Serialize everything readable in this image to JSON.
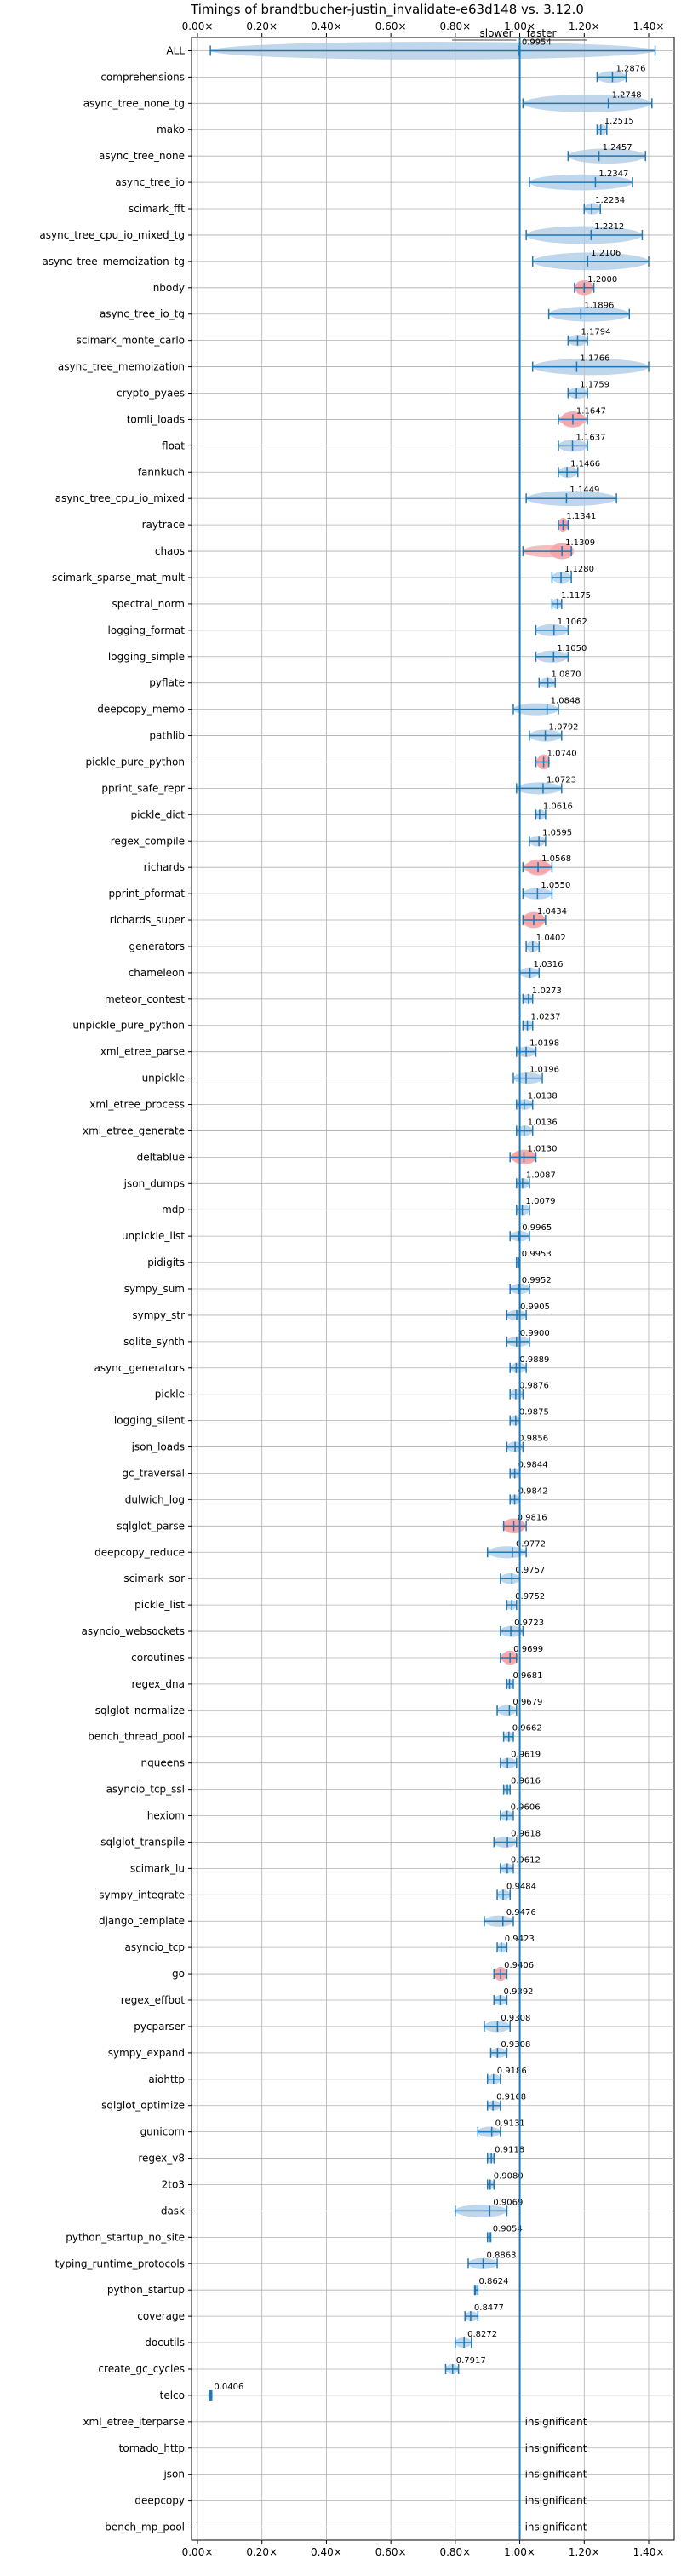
{
  "chart_data": {
    "type": "violin",
    "title": "Timings of brandtbucher-justin_invalidate-e63d148 vs. 3.12.0",
    "xlim": [
      0.0,
      1.4
    ],
    "reference_line": 1.0,
    "direction_labels": {
      "slower": "slower",
      "faster": "faster"
    },
    "x_ticks": [
      {
        "value": 0.0,
        "label": "0.00×"
      },
      {
        "value": 0.2,
        "label": "0.20×"
      },
      {
        "value": 0.4,
        "label": "0.40×"
      },
      {
        "value": 0.6,
        "label": "0.60×"
      },
      {
        "value": 0.8,
        "label": "0.80×"
      },
      {
        "value": 1.0,
        "label": "1.00×"
      },
      {
        "value": 1.2,
        "label": "1.20×"
      },
      {
        "value": 1.4,
        "label": "1.40×"
      }
    ],
    "grid": true,
    "colors": {
      "violin": "#aac8e4",
      "line": "#1f77b4",
      "highlight": "#f4a5a8",
      "grid": "#b0b0b0",
      "ref": "#1f77b4"
    },
    "insignificant_label": "insignificant",
    "benchmarks": [
      {
        "name": "ALL",
        "value": 0.9954,
        "label": "0.9954",
        "min": 0.04,
        "max": 1.42,
        "spread": 0.12,
        "highlight": false
      },
      {
        "name": "comprehensions",
        "value": 1.2876,
        "label": "1.2876",
        "min": 1.24,
        "max": 1.33,
        "spread": 0.04,
        "highlight": false
      },
      {
        "name": "async_tree_none_tg",
        "value": 1.2748,
        "label": "1.2748",
        "min": 1.01,
        "max": 1.41,
        "spread": 0.12,
        "highlight": false
      },
      {
        "name": "mako",
        "value": 1.2515,
        "label": "1.2515",
        "min": 1.24,
        "max": 1.27,
        "spread": 0.02,
        "highlight": false
      },
      {
        "name": "async_tree_none",
        "value": 1.2457,
        "label": "1.2457",
        "min": 1.15,
        "max": 1.39,
        "spread": 0.08,
        "highlight": false
      },
      {
        "name": "async_tree_io",
        "value": 1.2347,
        "label": "1.2347",
        "min": 1.03,
        "max": 1.35,
        "spread": 0.09,
        "highlight": false
      },
      {
        "name": "scimark_fft",
        "value": 1.2234,
        "label": "1.2234",
        "min": 1.2,
        "max": 1.25,
        "spread": 0.03,
        "highlight": false
      },
      {
        "name": "async_tree_cpu_io_mixed_tg",
        "value": 1.2212,
        "label": "1.2212",
        "min": 1.02,
        "max": 1.38,
        "spread": 0.12,
        "highlight": false
      },
      {
        "name": "async_tree_memoization_tg",
        "value": 1.2106,
        "label": "1.2106",
        "min": 1.04,
        "max": 1.4,
        "spread": 0.12,
        "highlight": false
      },
      {
        "name": "nbody",
        "value": 1.2,
        "label": "1.2000",
        "min": 1.17,
        "max": 1.23,
        "spread": 0.03,
        "highlight": true
      },
      {
        "name": "async_tree_io_tg",
        "value": 1.1896,
        "label": "1.1896",
        "min": 1.09,
        "max": 1.34,
        "spread": 0.08,
        "highlight": false
      },
      {
        "name": "scimark_monte_carlo",
        "value": 1.1794,
        "label": "1.1794",
        "min": 1.15,
        "max": 1.21,
        "spread": 0.03,
        "highlight": false
      },
      {
        "name": "async_tree_memoization",
        "value": 1.1766,
        "label": "1.1766",
        "min": 1.04,
        "max": 1.4,
        "spread": 0.1,
        "highlight": false
      },
      {
        "name": "crypto_pyaes",
        "value": 1.1759,
        "label": "1.1759",
        "min": 1.15,
        "max": 1.21,
        "spread": 0.03,
        "highlight": false
      },
      {
        "name": "tomli_loads",
        "value": 1.1647,
        "label": "1.1647",
        "min": 1.12,
        "max": 1.21,
        "spread": 0.04,
        "highlight": true
      },
      {
        "name": "float",
        "value": 1.1637,
        "label": "1.1637",
        "min": 1.12,
        "max": 1.21,
        "spread": 0.04,
        "highlight": false
      },
      {
        "name": "fannkuch",
        "value": 1.1466,
        "label": "1.1466",
        "min": 1.12,
        "max": 1.18,
        "spread": 0.03,
        "highlight": false
      },
      {
        "name": "async_tree_cpu_io_mixed",
        "value": 1.1449,
        "label": "1.1449",
        "min": 1.02,
        "max": 1.3,
        "spread": 0.08,
        "highlight": false
      },
      {
        "name": "raytrace",
        "value": 1.1341,
        "label": "1.1341",
        "min": 1.12,
        "max": 1.15,
        "spread": 0.02,
        "highlight": true
      },
      {
        "name": "chaos",
        "value": 1.1309,
        "label": "1.1309",
        "min": 1.01,
        "max": 1.16,
        "spread": 0.04,
        "highlight": true
      },
      {
        "name": "scimark_sparse_mat_mult",
        "value": 1.128,
        "label": "1.1280",
        "min": 1.1,
        "max": 1.16,
        "spread": 0.03,
        "highlight": false
      },
      {
        "name": "spectral_norm",
        "value": 1.1175,
        "label": "1.1175",
        "min": 1.1,
        "max": 1.13,
        "spread": 0.02,
        "highlight": false
      },
      {
        "name": "logging_format",
        "value": 1.1062,
        "label": "1.1062",
        "min": 1.05,
        "max": 1.15,
        "spread": 0.04,
        "highlight": false
      },
      {
        "name": "logging_simple",
        "value": 1.105,
        "label": "1.1050",
        "min": 1.05,
        "max": 1.15,
        "spread": 0.04,
        "highlight": false
      },
      {
        "name": "pyflate",
        "value": 1.087,
        "label": "1.0870",
        "min": 1.06,
        "max": 1.11,
        "spread": 0.02,
        "highlight": false
      },
      {
        "name": "deepcopy_memo",
        "value": 1.0848,
        "label": "1.0848",
        "min": 0.98,
        "max": 1.12,
        "spread": 0.04,
        "highlight": false
      },
      {
        "name": "pathlib",
        "value": 1.0792,
        "label": "1.0792",
        "min": 1.03,
        "max": 1.13,
        "spread": 0.04,
        "highlight": false
      },
      {
        "name": "pickle_pure_python",
        "value": 1.074,
        "label": "1.0740",
        "min": 1.05,
        "max": 1.09,
        "spread": 0.03,
        "highlight": true
      },
      {
        "name": "pprint_safe_repr",
        "value": 1.0723,
        "label": "1.0723",
        "min": 0.99,
        "max": 1.13,
        "spread": 0.04,
        "highlight": false
      },
      {
        "name": "pickle_dict",
        "value": 1.0616,
        "label": "1.0616",
        "min": 1.05,
        "max": 1.08,
        "spread": 0.015,
        "highlight": false
      },
      {
        "name": "regex_compile",
        "value": 1.0595,
        "label": "1.0595",
        "min": 1.03,
        "max": 1.08,
        "spread": 0.02,
        "highlight": false
      },
      {
        "name": "richards",
        "value": 1.0568,
        "label": "1.0568",
        "min": 1.01,
        "max": 1.1,
        "spread": 0.04,
        "highlight": true
      },
      {
        "name": "pprint_pformat",
        "value": 1.055,
        "label": "1.0550",
        "min": 1.01,
        "max": 1.1,
        "spread": 0.03,
        "highlight": false
      },
      {
        "name": "richards_super",
        "value": 1.0434,
        "label": "1.0434",
        "min": 1.01,
        "max": 1.08,
        "spread": 0.04,
        "highlight": true
      },
      {
        "name": "generators",
        "value": 1.0402,
        "label": "1.0402",
        "min": 1.02,
        "max": 1.06,
        "spread": 0.02,
        "highlight": false
      },
      {
        "name": "chameleon",
        "value": 1.0316,
        "label": "1.0316",
        "min": 1.0,
        "max": 1.06,
        "spread": 0.02,
        "highlight": false
      },
      {
        "name": "meteor_contest",
        "value": 1.0273,
        "label": "1.0273",
        "min": 1.01,
        "max": 1.04,
        "spread": 0.015,
        "highlight": false
      },
      {
        "name": "unpickle_pure_python",
        "value": 1.0237,
        "label": "1.0237",
        "min": 1.01,
        "max": 1.04,
        "spread": 0.015,
        "highlight": false
      },
      {
        "name": "xml_etree_parse",
        "value": 1.0198,
        "label": "1.0198",
        "min": 0.99,
        "max": 1.05,
        "spread": 0.02,
        "highlight": false
      },
      {
        "name": "unpickle",
        "value": 1.0196,
        "label": "1.0196",
        "min": 0.98,
        "max": 1.07,
        "spread": 0.03,
        "highlight": false
      },
      {
        "name": "xml_etree_process",
        "value": 1.0138,
        "label": "1.0138",
        "min": 0.99,
        "max": 1.04,
        "spread": 0.02,
        "highlight": false
      },
      {
        "name": "xml_etree_generate",
        "value": 1.0136,
        "label": "1.0136",
        "min": 0.99,
        "max": 1.04,
        "spread": 0.02,
        "highlight": false
      },
      {
        "name": "deltablue",
        "value": 1.013,
        "label": "1.0130",
        "min": 0.97,
        "max": 1.05,
        "spread": 0.03,
        "highlight": true
      },
      {
        "name": "json_dumps",
        "value": 1.0087,
        "label": "1.0087",
        "min": 0.99,
        "max": 1.03,
        "spread": 0.02,
        "highlight": false
      },
      {
        "name": "mdp",
        "value": 1.0079,
        "label": "1.0079",
        "min": 0.99,
        "max": 1.03,
        "spread": 0.02,
        "highlight": false
      },
      {
        "name": "unpickle_list",
        "value": 0.9965,
        "label": "0.9965",
        "min": 0.97,
        "max": 1.03,
        "spread": 0.02,
        "highlight": false
      },
      {
        "name": "pidigits",
        "value": 0.9953,
        "label": "0.9953",
        "min": 0.99,
        "max": 1.0,
        "spread": 0.005,
        "highlight": false
      },
      {
        "name": "sympy_sum",
        "value": 0.9952,
        "label": "0.9952",
        "min": 0.97,
        "max": 1.03,
        "spread": 0.02,
        "highlight": false
      },
      {
        "name": "sympy_str",
        "value": 0.9905,
        "label": "0.9905",
        "min": 0.96,
        "max": 1.02,
        "spread": 0.02,
        "highlight": false
      },
      {
        "name": "sqlite_synth",
        "value": 0.99,
        "label": "0.9900",
        "min": 0.96,
        "max": 1.03,
        "spread": 0.02,
        "highlight": false
      },
      {
        "name": "async_generators",
        "value": 0.9889,
        "label": "0.9889",
        "min": 0.97,
        "max": 1.02,
        "spread": 0.02,
        "highlight": false
      },
      {
        "name": "pickle",
        "value": 0.9876,
        "label": "0.9876",
        "min": 0.97,
        "max": 1.01,
        "spread": 0.015,
        "highlight": false
      },
      {
        "name": "logging_silent",
        "value": 0.9875,
        "label": "0.9875",
        "min": 0.97,
        "max": 1.0,
        "spread": 0.015,
        "highlight": false
      },
      {
        "name": "json_loads",
        "value": 0.9856,
        "label": "0.9856",
        "min": 0.96,
        "max": 1.01,
        "spread": 0.02,
        "highlight": false
      },
      {
        "name": "gc_traversal",
        "value": 0.9844,
        "label": "0.9844",
        "min": 0.97,
        "max": 1.0,
        "spread": 0.01,
        "highlight": false
      },
      {
        "name": "dulwich_log",
        "value": 0.9842,
        "label": "0.9842",
        "min": 0.97,
        "max": 1.0,
        "spread": 0.015,
        "highlight": false
      },
      {
        "name": "sqlglot_parse",
        "value": 0.9816,
        "label": "0.9816",
        "min": 0.95,
        "max": 1.02,
        "spread": 0.03,
        "highlight": true
      },
      {
        "name": "deepcopy_reduce",
        "value": 0.9772,
        "label": "0.9772",
        "min": 0.9,
        "max": 1.02,
        "spread": 0.04,
        "highlight": false
      },
      {
        "name": "scimark_sor",
        "value": 0.9757,
        "label": "0.9757",
        "min": 0.94,
        "max": 1.0,
        "spread": 0.02,
        "highlight": false
      },
      {
        "name": "pickle_list",
        "value": 0.9752,
        "label": "0.9752",
        "min": 0.96,
        "max": 0.99,
        "spread": 0.015,
        "highlight": false
      },
      {
        "name": "asyncio_websockets",
        "value": 0.9723,
        "label": "0.9723",
        "min": 0.94,
        "max": 1.01,
        "spread": 0.03,
        "highlight": false
      },
      {
        "name": "coroutines",
        "value": 0.9699,
        "label": "0.9699",
        "min": 0.94,
        "max": 0.99,
        "spread": 0.02,
        "highlight": true
      },
      {
        "name": "regex_dna",
        "value": 0.9681,
        "label": "0.9681",
        "min": 0.96,
        "max": 0.98,
        "spread": 0.01,
        "highlight": false
      },
      {
        "name": "sqlglot_normalize",
        "value": 0.9679,
        "label": "0.9679",
        "min": 0.93,
        "max": 0.99,
        "spread": 0.02,
        "highlight": false
      },
      {
        "name": "bench_thread_pool",
        "value": 0.9662,
        "label": "0.9662",
        "min": 0.95,
        "max": 0.98,
        "spread": 0.015,
        "highlight": false
      },
      {
        "name": "nqueens",
        "value": 0.9619,
        "label": "0.9619",
        "min": 0.94,
        "max": 0.99,
        "spread": 0.02,
        "highlight": false
      },
      {
        "name": "asyncio_tcp_ssl",
        "value": 0.9616,
        "label": "0.9616",
        "min": 0.95,
        "max": 0.97,
        "spread": 0.01,
        "highlight": false
      },
      {
        "name": "hexiom",
        "value": 0.9606,
        "label": "0.9606",
        "min": 0.94,
        "max": 0.98,
        "spread": 0.015,
        "highlight": false
      },
      {
        "name": "sqlglot_transpile",
        "value": 0.9618,
        "label": "0.9618",
        "min": 0.92,
        "max": 0.99,
        "spread": 0.03,
        "highlight": false
      },
      {
        "name": "scimark_lu",
        "value": 0.9612,
        "label": "0.9612",
        "min": 0.94,
        "max": 0.98,
        "spread": 0.015,
        "highlight": false
      },
      {
        "name": "sympy_integrate",
        "value": 0.9484,
        "label": "0.9484",
        "min": 0.93,
        "max": 0.97,
        "spread": 0.015,
        "highlight": false
      },
      {
        "name": "django_template",
        "value": 0.9476,
        "label": "0.9476",
        "min": 0.89,
        "max": 0.98,
        "spread": 0.03,
        "highlight": false
      },
      {
        "name": "asyncio_tcp",
        "value": 0.9423,
        "label": "0.9423",
        "min": 0.93,
        "max": 0.96,
        "spread": 0.01,
        "highlight": false
      },
      {
        "name": "go",
        "value": 0.9406,
        "label": "0.9406",
        "min": 0.92,
        "max": 0.96,
        "spread": 0.02,
        "highlight": true
      },
      {
        "name": "regex_effbot",
        "value": 0.9392,
        "label": "0.9392",
        "min": 0.92,
        "max": 0.96,
        "spread": 0.015,
        "highlight": false
      },
      {
        "name": "pycparser",
        "value": 0.9308,
        "label": "0.9308",
        "min": 0.89,
        "max": 0.97,
        "spread": 0.03,
        "highlight": false
      },
      {
        "name": "sympy_expand",
        "value": 0.9308,
        "label": "0.9308",
        "min": 0.91,
        "max": 0.96,
        "spread": 0.015,
        "highlight": false
      },
      {
        "name": "aiohttp",
        "value": 0.9186,
        "label": "0.9186",
        "min": 0.9,
        "max": 0.94,
        "spread": 0.015,
        "highlight": false
      },
      {
        "name": "sqlglot_optimize",
        "value": 0.9168,
        "label": "0.9168",
        "min": 0.9,
        "max": 0.94,
        "spread": 0.015,
        "highlight": false
      },
      {
        "name": "gunicorn",
        "value": 0.9131,
        "label": "0.9131",
        "min": 0.87,
        "max": 0.94,
        "spread": 0.02,
        "highlight": false
      },
      {
        "name": "regex_v8",
        "value": 0.9118,
        "label": "0.9118",
        "min": 0.9,
        "max": 0.92,
        "spread": 0.01,
        "highlight": false
      },
      {
        "name": "2to3",
        "value": 0.908,
        "label": "0.9080",
        "min": 0.9,
        "max": 0.92,
        "spread": 0.008,
        "highlight": false
      },
      {
        "name": "dask",
        "value": 0.9069,
        "label": "0.9069",
        "min": 0.8,
        "max": 0.96,
        "spread": 0.05,
        "highlight": false
      },
      {
        "name": "python_startup_no_site",
        "value": 0.9054,
        "label": "0.9054",
        "min": 0.9,
        "max": 0.91,
        "spread": 0.006,
        "highlight": false
      },
      {
        "name": "typing_runtime_protocols",
        "value": 0.8863,
        "label": "0.8863",
        "min": 0.84,
        "max": 0.93,
        "spread": 0.03,
        "highlight": false
      },
      {
        "name": "python_startup",
        "value": 0.8624,
        "label": "0.8624",
        "min": 0.86,
        "max": 0.87,
        "spread": 0.006,
        "highlight": false
      },
      {
        "name": "coverage",
        "value": 0.8477,
        "label": "0.8477",
        "min": 0.83,
        "max": 0.87,
        "spread": 0.015,
        "highlight": false
      },
      {
        "name": "docutils",
        "value": 0.8272,
        "label": "0.8272",
        "min": 0.8,
        "max": 0.85,
        "spread": 0.015,
        "highlight": false
      },
      {
        "name": "create_gc_cycles",
        "value": 0.7917,
        "label": "0.7917",
        "min": 0.77,
        "max": 0.81,
        "spread": 0.015,
        "highlight": false
      },
      {
        "name": "telco",
        "value": 0.0406,
        "label": "0.0406",
        "min": 0.037,
        "max": 0.044,
        "spread": 0.004,
        "highlight": false
      },
      {
        "name": "xml_etree_iterparse",
        "value": null,
        "label": "",
        "insignificant": true
      },
      {
        "name": "tornado_http",
        "value": null,
        "label": "",
        "insignificant": true
      },
      {
        "name": "json",
        "value": null,
        "label": "",
        "insignificant": true
      },
      {
        "name": "deepcopy",
        "value": null,
        "label": "",
        "insignificant": true
      },
      {
        "name": "bench_mp_pool",
        "value": null,
        "label": "",
        "insignificant": true
      }
    ]
  }
}
